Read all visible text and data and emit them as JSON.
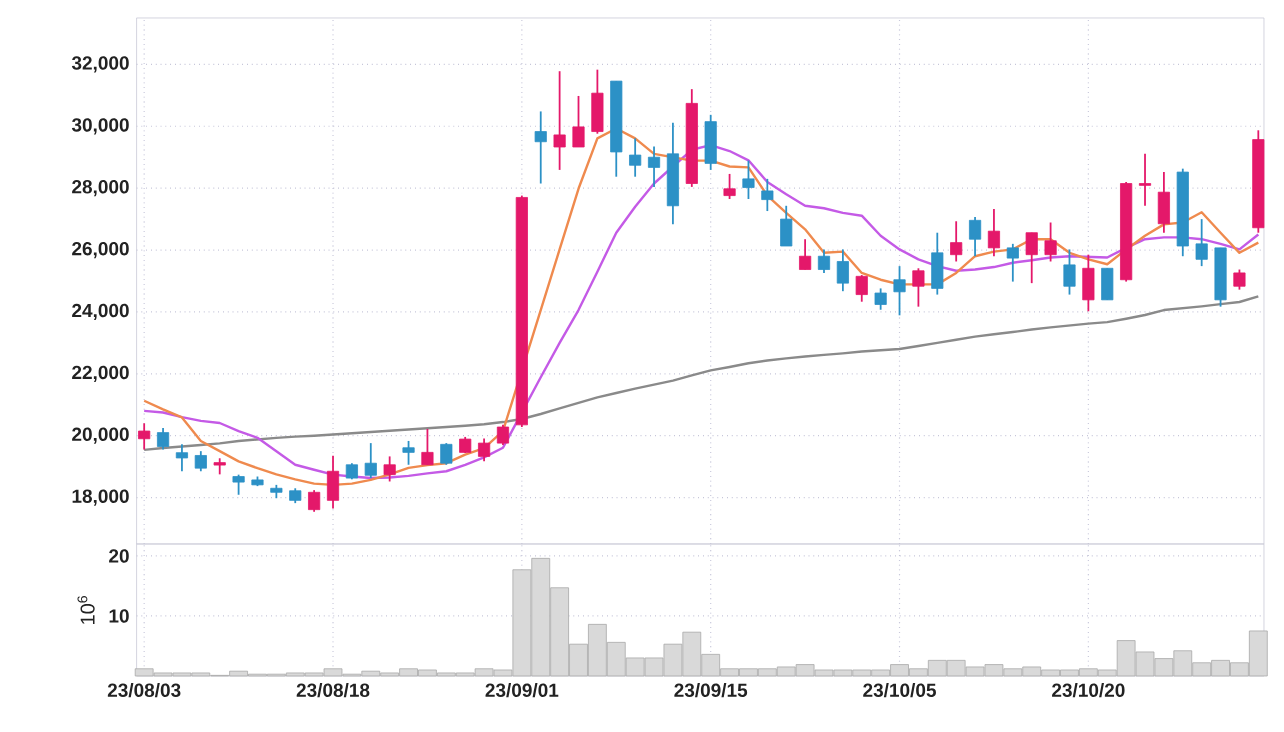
{
  "chart_data": [
    {
      "type": "candlestick",
      "categories": [
        null,
        null,
        null,
        null,
        null,
        null,
        null,
        null,
        null,
        null,
        null,
        null,
        null,
        null,
        null,
        null,
        null,
        null,
        null,
        null,
        null,
        null,
        null,
        null,
        null,
        null,
        null,
        null,
        null,
        null,
        null,
        null,
        null,
        null,
        null,
        null,
        null,
        null,
        null,
        null,
        null,
        null,
        null,
        null,
        null,
        null,
        null,
        null,
        null,
        null,
        null,
        null,
        null,
        null,
        null,
        null,
        null,
        null,
        null,
        null
      ],
      "ohlc": [
        [
          19900,
          20400,
          19550,
          20150
        ],
        [
          20100,
          20250,
          19550,
          19650
        ],
        [
          19450,
          19720,
          18850,
          19280
        ],
        [
          19360,
          19500,
          18850,
          18950
        ],
        [
          19050,
          19270,
          18750,
          19130
        ],
        [
          18680,
          18740,
          18090,
          18500
        ],
        [
          18570,
          18680,
          18370,
          18410
        ],
        [
          18300,
          18410,
          17980,
          18170
        ],
        [
          18220,
          18300,
          17820,
          17910
        ],
        [
          17610,
          18240,
          17540,
          18170
        ],
        [
          17910,
          19350,
          17650,
          18850
        ],
        [
          19060,
          19110,
          18590,
          18630
        ],
        [
          19110,
          19760,
          18630,
          18720
        ],
        [
          18740,
          19330,
          18520,
          19060
        ],
        [
          19610,
          19830,
          19060,
          19460
        ],
        [
          19060,
          20220,
          19060,
          19460
        ],
        [
          19720,
          19760,
          19060,
          19110
        ],
        [
          19460,
          19960,
          19440,
          19890
        ],
        [
          19330,
          19910,
          19170,
          19760
        ],
        [
          19760,
          20350,
          19700,
          20280
        ],
        [
          20350,
          27760,
          20280,
          27700
        ],
        [
          29830,
          30480,
          28150,
          29500
        ],
        [
          29330,
          31780,
          28590,
          29720
        ],
        [
          29330,
          30980,
          29330,
          29980
        ],
        [
          29830,
          31830,
          29760,
          31070
        ],
        [
          31460,
          31460,
          28370,
          29170
        ],
        [
          29070,
          29610,
          28370,
          28740
        ],
        [
          29000,
          29350,
          28040,
          28670
        ],
        [
          29110,
          30110,
          26830,
          27430
        ],
        [
          28150,
          31200,
          28040,
          30740
        ],
        [
          30150,
          30370,
          28590,
          28800
        ],
        [
          27760,
          28460,
          27650,
          27980
        ],
        [
          28300,
          28890,
          27650,
          28020
        ],
        [
          27910,
          28300,
          27260,
          27630
        ],
        [
          27000,
          27430,
          26130,
          26130
        ],
        [
          25370,
          26350,
          25370,
          25800
        ],
        [
          25800,
          26020,
          25260,
          25370
        ],
        [
          25630,
          26020,
          24670,
          24930
        ],
        [
          24560,
          25190,
          24330,
          25150
        ],
        [
          24610,
          24760,
          24070,
          24240
        ],
        [
          25040,
          25480,
          23890,
          24650
        ],
        [
          24830,
          25410,
          24170,
          25330
        ],
        [
          25910,
          26560,
          24560,
          24760
        ],
        [
          25850,
          26930,
          25630,
          26240
        ],
        [
          26960,
          27070,
          25800,
          26350
        ],
        [
          26070,
          27330,
          25800,
          26610
        ],
        [
          26070,
          26200,
          24980,
          25740
        ],
        [
          25850,
          26560,
          24930,
          26560
        ],
        [
          25850,
          26890,
          25630,
          26300
        ],
        [
          25520,
          26020,
          24560,
          24830
        ],
        [
          24390,
          25850,
          24020,
          25410
        ],
        [
          25410,
          25410,
          24390,
          24390
        ],
        [
          25040,
          28200,
          24980,
          28150
        ],
        [
          28090,
          29110,
          27430,
          28150
        ],
        [
          26850,
          28520,
          26560,
          27870
        ],
        [
          28520,
          28630,
          25800,
          26130
        ],
        [
          26200,
          27000,
          25480,
          25700
        ],
        [
          26070,
          26070,
          24170,
          24390
        ],
        [
          24830,
          25370,
          24720,
          25260
        ],
        [
          26720,
          29870,
          26560,
          29570
        ]
      ],
      "colors": [
        "#e4186a",
        "#2c91c6",
        "#2c91c6",
        "#2c91c6",
        "#e4186a",
        "#2c91c6",
        "#2c91c6",
        "#2c91c6",
        "#2c91c6",
        "#e4186a",
        "#e4186a",
        "#2c91c6",
        "#2c91c6",
        "#e4186a",
        "#2c91c6",
        "#e4186a",
        "#2c91c6",
        "#e4186a",
        "#e4186a",
        "#e4186a",
        "#e4186a",
        "#2c91c6",
        "#e4186a",
        "#e4186a",
        "#e4186a",
        "#2c91c6",
        "#2c91c6",
        "#2c91c6",
        "#2c91c6",
        "#e4186a",
        "#2c91c6",
        "#e4186a",
        "#2c91c6",
        "#2c91c6",
        "#2c91c6",
        "#e4186a",
        "#2c91c6",
        "#2c91c6",
        "#e4186a",
        "#2c91c6",
        "#2c91c6",
        "#e4186a",
        "#2c91c6",
        "#e4186a",
        "#2c91c6",
        "#e4186a",
        "#2c91c6",
        "#e4186a",
        "#e4186a",
        "#2c91c6",
        "#e4186a",
        "#2c91c6",
        "#e4186a",
        "#e4186a",
        "#e4186a",
        "#2c91c6",
        "#2c91c6",
        "#2c91c6",
        "#e4186a",
        "#e4186a"
      ],
      "series": [
        {
          "type": "line",
          "color": "#8a8a8a",
          "values": [
            19540,
            19600,
            19650,
            19700,
            19750,
            19830,
            19880,
            19930,
            19970,
            20000,
            20040,
            20080,
            20120,
            20160,
            20200,
            20240,
            20280,
            20320,
            20370,
            20440,
            20540,
            20700,
            20880,
            21060,
            21240,
            21380,
            21520,
            21650,
            21780,
            21950,
            22110,
            22220,
            22340,
            22430,
            22500,
            22560,
            22610,
            22660,
            22720,
            22760,
            22800,
            22900,
            23000,
            23100,
            23200,
            23280,
            23350,
            23430,
            23500,
            23560,
            23620,
            23670,
            23780,
            23900,
            24060,
            24120,
            24180,
            24250,
            24320,
            24500
          ]
        },
        {
          "type": "line",
          "color": "#c45ae6",
          "values": [
            20800,
            20750,
            20600,
            20480,
            20410,
            20150,
            19930,
            19500,
            19060,
            18900,
            18740,
            18680,
            18630,
            18650,
            18700,
            18780,
            18850,
            19060,
            19300,
            19610,
            null,
            21890,
            23000,
            24060,
            25300,
            26560,
            27400,
            28150,
            28700,
            29240,
            29390,
            29200,
            28900,
            28200,
            27800,
            27430,
            27350,
            27200,
            27110,
            26460,
            26020,
            25700,
            25480,
            25330,
            25370,
            25450,
            25590,
            25670,
            25760,
            25800,
            25780,
            25760,
            26070,
            26350,
            26410,
            26410,
            26350,
            26200,
            26020,
            26500
          ]
        },
        {
          "type": "line",
          "color": "#ef8a4e",
          "values": [
            21130,
            20850,
            20590,
            19830,
            19500,
            19170,
            18950,
            18750,
            18590,
            18450,
            18410,
            18450,
            18570,
            18750,
            18960,
            19050,
            19110,
            19390,
            19600,
            20150,
            null,
            24060,
            26020,
            27980,
            29610,
            29930,
            29610,
            29110,
            29000,
            28890,
            28890,
            28700,
            28670,
            27760,
            27200,
            26670,
            25910,
            25950,
            25260,
            25040,
            24890,
            24890,
            24890,
            25260,
            25800,
            25950,
            26020,
            26350,
            26350,
            25910,
            25700,
            25540,
            26020,
            26460,
            26830,
            26890,
            27220,
            26560,
            25910,
            26240
          ]
        }
      ],
      "ylim": [
        16500,
        33500
      ],
      "yticks": [
        {
          "value": 18000,
          "label": "18,000"
        },
        {
          "value": 20000,
          "label": "20,000"
        },
        {
          "value": 22000,
          "label": "22,000"
        },
        {
          "value": 24000,
          "label": "24,000"
        },
        {
          "value": 26000,
          "label": "26,000"
        },
        {
          "value": 28000,
          "label": "28,000"
        },
        {
          "value": 30000,
          "label": "30,000"
        },
        {
          "value": 32000,
          "label": "32,000"
        }
      ],
      "grid": true,
      "tick_labels": "y"
    },
    {
      "type": "bar",
      "categories": [
        "23/08/03",
        null,
        null,
        null,
        null,
        null,
        null,
        null,
        null,
        null,
        "23/08/18",
        null,
        null,
        null,
        null,
        null,
        null,
        null,
        null,
        null,
        "23/09/01",
        null,
        null,
        null,
        null,
        null,
        null,
        null,
        null,
        null,
        "23/09/15",
        null,
        null,
        null,
        null,
        null,
        null,
        null,
        null,
        null,
        "23/10/05",
        null,
        null,
        null,
        null,
        null,
        null,
        null,
        null,
        null,
        "23/10/20",
        null,
        null,
        null,
        null,
        null,
        null,
        null,
        null,
        null
      ],
      "values": [
        1.2,
        0.5,
        0.5,
        0.5,
        0.1,
        0.8,
        0.3,
        0.3,
        0.5,
        0.5,
        1.2,
        0.3,
        0.8,
        0.5,
        1.2,
        1.0,
        0.5,
        0.5,
        1.2,
        1.0,
        17.7,
        19.6,
        14.7,
        5.3,
        8.6,
        5.6,
        3.0,
        3.0,
        5.3,
        7.3,
        3.6,
        1.2,
        1.2,
        1.2,
        1.5,
        1.9,
        1.0,
        1.0,
        1.0,
        1.0,
        1.9,
        1.2,
        2.6,
        2.6,
        1.5,
        1.9,
        1.2,
        1.5,
        1.0,
        1.0,
        1.2,
        1.0,
        5.9,
        4.0,
        2.9,
        4.2,
        2.2,
        2.6,
        2.2,
        7.5
      ],
      "color": "#d9d9d9",
      "ylim": [
        0,
        22
      ],
      "yticks": [
        10,
        20
      ],
      "ylabel": "10$^{6}$",
      "grid": true
    }
  ]
}
